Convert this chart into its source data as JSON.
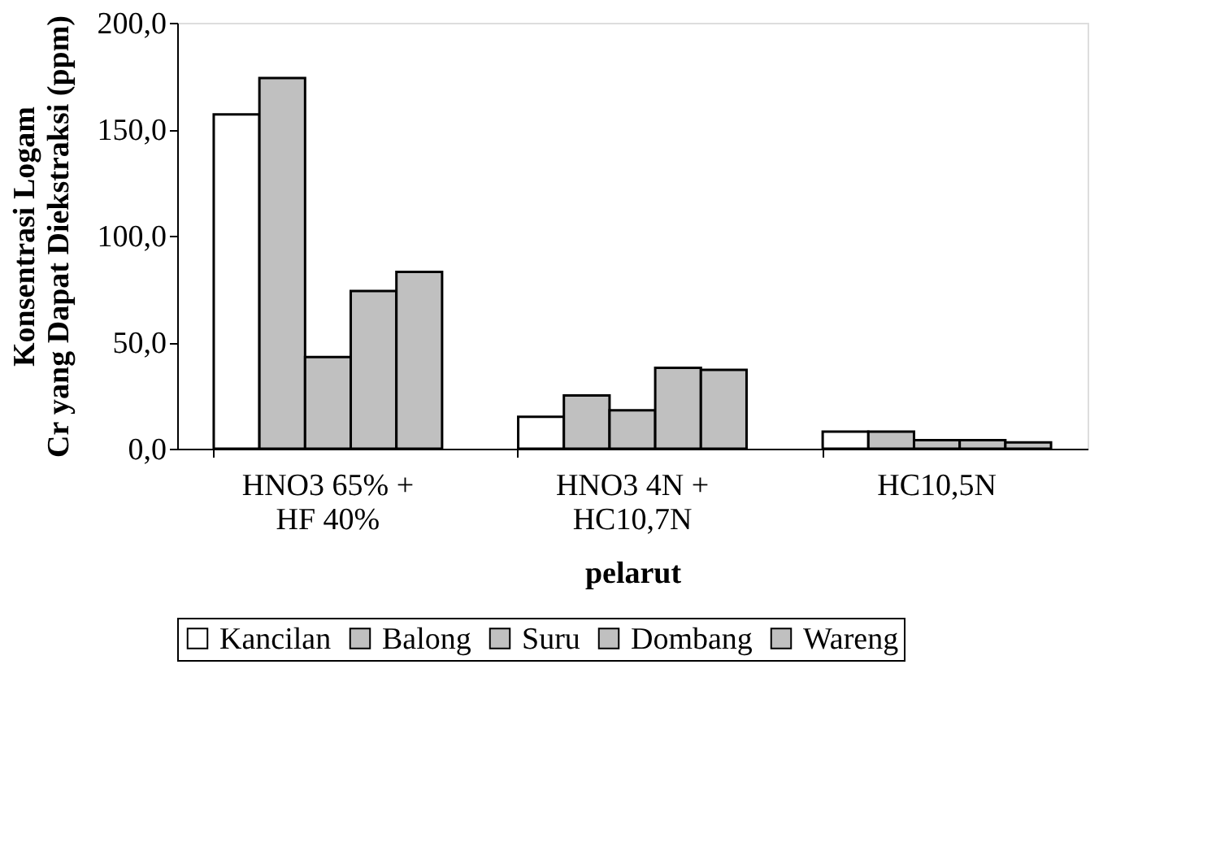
{
  "chart_data": {
    "type": "bar",
    "xlabel": "pelarut",
    "ylabel": [
      "Konsentrasi Logam",
      "Cr yang Dapat Diekstraksi (ppm)"
    ],
    "categories": [
      "HNO3 65% +\nHF 40%",
      "HNO3 4N +\nHC10,7N",
      "HC10,5N"
    ],
    "series": [
      {
        "name": "Kancilan",
        "color": "#ffffff",
        "values": [
          157,
          15,
          8
        ]
      },
      {
        "name": "Balong",
        "color": "#c0c0c0",
        "values": [
          174,
          25,
          8
        ]
      },
      {
        "name": "Suru",
        "color": "#c0c0c0",
        "values": [
          43,
          18,
          4
        ]
      },
      {
        "name": "Dombang",
        "color": "#c0c0c0",
        "values": [
          74,
          38,
          4
        ]
      },
      {
        "name": "Wareng",
        "color": "#c0c0c0",
        "values": [
          83,
          37,
          3
        ]
      }
    ],
    "ylim": [
      0,
      200
    ],
    "yticks": [
      {
        "value": 0,
        "label": "0,0"
      },
      {
        "value": 50,
        "label": "50,0"
      },
      {
        "value": 100,
        "label": "100,0"
      },
      {
        "value": 150,
        "label": "150,0"
      },
      {
        "value": 200,
        "label": "200,0"
      }
    ],
    "grid": false,
    "legend": "bottom"
  }
}
